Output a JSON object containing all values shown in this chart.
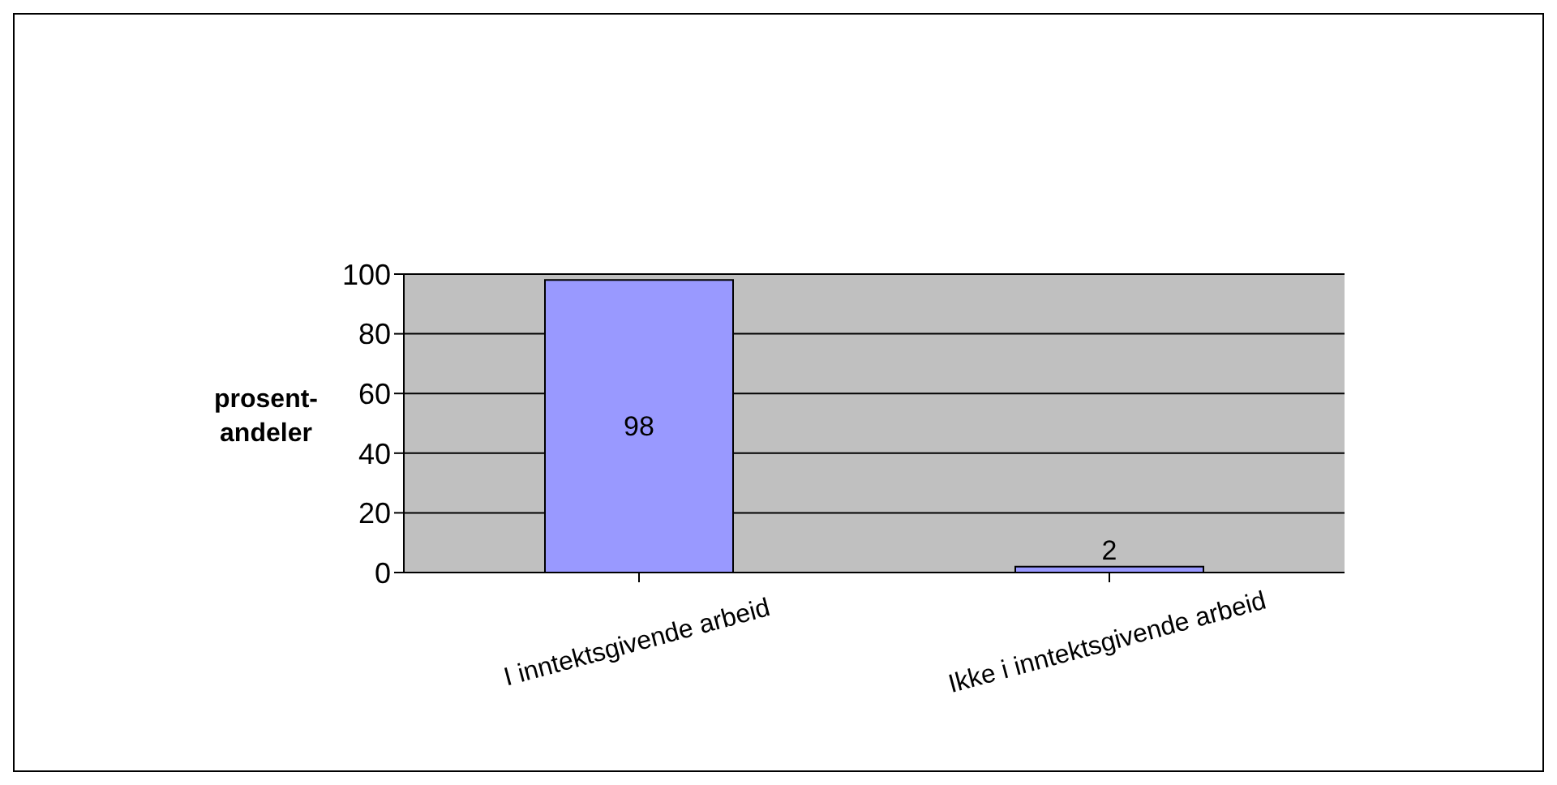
{
  "chart_data": {
    "type": "bar",
    "ylabel": "prosent-\nandeler",
    "categories": [
      "I inntektsgivende arbeid",
      "Ikke i inntektsgivende arbeid"
    ],
    "values": [
      98,
      2
    ],
    "color": "#9999ff",
    "ylim": [
      0,
      100
    ],
    "yticks": [
      0,
      20,
      40,
      60,
      80,
      100
    ],
    "grid": "y",
    "data_labels": true
  }
}
